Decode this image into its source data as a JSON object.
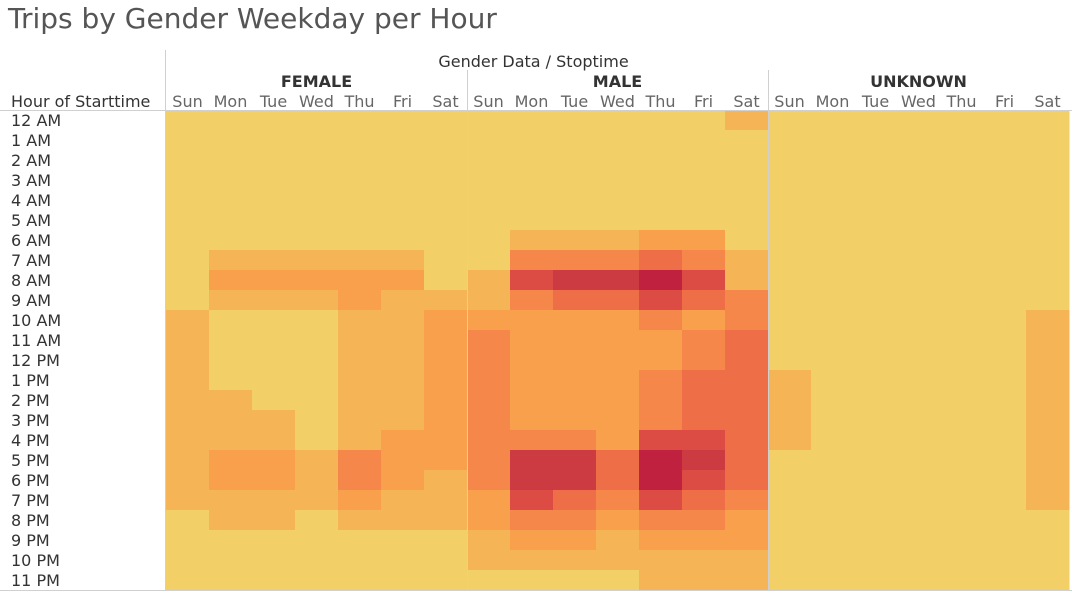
{
  "chart_data": {
    "type": "heatmap",
    "title": "Trips by Gender Weekday per Hour",
    "column_header_title": "Gender Data / Stoptime",
    "row_header_label": "Hour of Starttime",
    "genders": [
      "FEMALE",
      "MALE",
      "UNKNOWN"
    ],
    "days": [
      "Sun",
      "Mon",
      "Tue",
      "Wed",
      "Thu",
      "Fri",
      "Sat"
    ],
    "hours": [
      "12 AM",
      "1 AM",
      "2 AM",
      "3 AM",
      "4 AM",
      "5 AM",
      "6 AM",
      "7 AM",
      "8 AM",
      "9 AM",
      "10 AM",
      "11 AM",
      "12 PM",
      "1 PM",
      "2 PM",
      "3 PM",
      "4 PM",
      "5 PM",
      "6 PM",
      "7 PM",
      "8 PM",
      "9 PM",
      "10 PM",
      "11 PM"
    ],
    "scale": {
      "min": 0,
      "max": 10,
      "color_stops": [
        "#f3d067",
        "#f5b556",
        "#f8a04c",
        "#f5874a",
        "#ee6e47",
        "#dd4c44",
        "#cd3b42",
        "#c0213f"
      ]
    },
    "values": {
      "FEMALE": [
        [
          0,
          0,
          0,
          0,
          0,
          0,
          0
        ],
        [
          0,
          0,
          0,
          0,
          0,
          0,
          0
        ],
        [
          0,
          0,
          0,
          0,
          0,
          0,
          0
        ],
        [
          0,
          0,
          0,
          0,
          0,
          0,
          0
        ],
        [
          0,
          0,
          0,
          0,
          0,
          0,
          0
        ],
        [
          0,
          0,
          0,
          0,
          0,
          0,
          0
        ],
        [
          0,
          0,
          0,
          0,
          0,
          0,
          0
        ],
        [
          0,
          1,
          1,
          1,
          1,
          1,
          0
        ],
        [
          0,
          2,
          2,
          2,
          2,
          2,
          0
        ],
        [
          0,
          1,
          1,
          1,
          2,
          1,
          1
        ],
        [
          1,
          0,
          0,
          0,
          1,
          1,
          2
        ],
        [
          1,
          0,
          0,
          0,
          1,
          1,
          2
        ],
        [
          1,
          0,
          0,
          0,
          1,
          1,
          2
        ],
        [
          1,
          0,
          0,
          0,
          1,
          1,
          2
        ],
        [
          1,
          1,
          0,
          0,
          1,
          1,
          2
        ],
        [
          1,
          1,
          1,
          0,
          1,
          1,
          2
        ],
        [
          1,
          1,
          1,
          0,
          1,
          2,
          2
        ],
        [
          1,
          2,
          2,
          1,
          3,
          2,
          2
        ],
        [
          1,
          2,
          2,
          1,
          3,
          2,
          1
        ],
        [
          1,
          1,
          1,
          1,
          2,
          1,
          1
        ],
        [
          0,
          1,
          1,
          0,
          1,
          1,
          1
        ],
        [
          0,
          0,
          0,
          0,
          0,
          0,
          0
        ],
        [
          0,
          0,
          0,
          0,
          0,
          0,
          0
        ],
        [
          0,
          0,
          0,
          0,
          0,
          0,
          0
        ]
      ],
      "MALE": [
        [
          0,
          0,
          0,
          0,
          0,
          0,
          1
        ],
        [
          0,
          0,
          0,
          0,
          0,
          0,
          0
        ],
        [
          0,
          0,
          0,
          0,
          0,
          0,
          0
        ],
        [
          0,
          0,
          0,
          0,
          0,
          0,
          0
        ],
        [
          0,
          0,
          0,
          0,
          0,
          0,
          0
        ],
        [
          0,
          0,
          0,
          0,
          0,
          0,
          0
        ],
        [
          0,
          1,
          1,
          1,
          2,
          2,
          0
        ],
        [
          0,
          3,
          3,
          3,
          4,
          3,
          1
        ],
        [
          1,
          5,
          6,
          6,
          7,
          5,
          1
        ],
        [
          1,
          3,
          4,
          4,
          5,
          4,
          3
        ],
        [
          2,
          2,
          2,
          2,
          3,
          2,
          3
        ],
        [
          3,
          2,
          2,
          2,
          2,
          3,
          4
        ],
        [
          3,
          2,
          2,
          2,
          2,
          3,
          4
        ],
        [
          3,
          2,
          2,
          2,
          3,
          4,
          4
        ],
        [
          3,
          2,
          2,
          2,
          3,
          4,
          4
        ],
        [
          3,
          2,
          2,
          2,
          3,
          4,
          4
        ],
        [
          3,
          3,
          3,
          2,
          5,
          5,
          4
        ],
        [
          3,
          6,
          6,
          4,
          8,
          6,
          4
        ],
        [
          3,
          6,
          6,
          4,
          8,
          5,
          4
        ],
        [
          2,
          5,
          4,
          3,
          5,
          4,
          3
        ],
        [
          2,
          3,
          3,
          2,
          3,
          3,
          2
        ],
        [
          1,
          2,
          2,
          1,
          2,
          2,
          2
        ],
        [
          1,
          1,
          1,
          1,
          1,
          1,
          1
        ],
        [
          0,
          0,
          0,
          0,
          1,
          1,
          1
        ]
      ],
      "UNKNOWN": [
        [
          0,
          0,
          0,
          0,
          0,
          0,
          0
        ],
        [
          0,
          0,
          0,
          0,
          0,
          0,
          0
        ],
        [
          0,
          0,
          0,
          0,
          0,
          0,
          0
        ],
        [
          0,
          0,
          0,
          0,
          0,
          0,
          0
        ],
        [
          0,
          0,
          0,
          0,
          0,
          0,
          0
        ],
        [
          0,
          0,
          0,
          0,
          0,
          0,
          0
        ],
        [
          0,
          0,
          0,
          0,
          0,
          0,
          0
        ],
        [
          0,
          0,
          0,
          0,
          0,
          0,
          0
        ],
        [
          0,
          0,
          0,
          0,
          0,
          0,
          0
        ],
        [
          0,
          0,
          0,
          0,
          0,
          0,
          0
        ],
        [
          0,
          0,
          0,
          0,
          0,
          0,
          1
        ],
        [
          0,
          0,
          0,
          0,
          0,
          0,
          1
        ],
        [
          0,
          0,
          0,
          0,
          0,
          0,
          1
        ],
        [
          1,
          0,
          0,
          0,
          0,
          0,
          1
        ],
        [
          1,
          0,
          0,
          0,
          0,
          0,
          1
        ],
        [
          1,
          0,
          0,
          0,
          0,
          0,
          1
        ],
        [
          1,
          0,
          0,
          0,
          0,
          0,
          1
        ],
        [
          0,
          0,
          0,
          0,
          0,
          0,
          1
        ],
        [
          0,
          0,
          0,
          0,
          0,
          0,
          1
        ],
        [
          0,
          0,
          0,
          0,
          0,
          0,
          1
        ],
        [
          0,
          0,
          0,
          0,
          0,
          0,
          0
        ],
        [
          0,
          0,
          0,
          0,
          0,
          0,
          0
        ],
        [
          0,
          0,
          0,
          0,
          0,
          0,
          0
        ],
        [
          0,
          0,
          0,
          0,
          0,
          0,
          0
        ]
      ]
    }
  }
}
